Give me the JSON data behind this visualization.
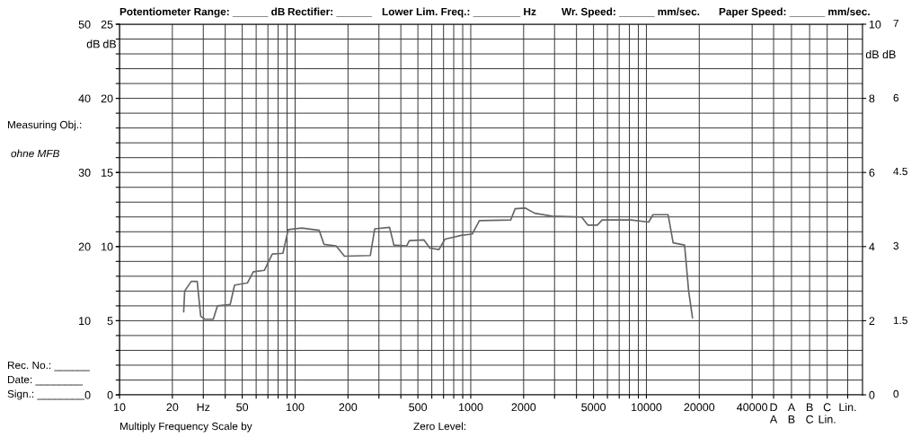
{
  "chart_data": {
    "type": "line",
    "log": "x",
    "grid": true,
    "marker": "none",
    "line_style": "solid",
    "ylabel": "dB",
    "y2label": "dB",
    "y3label": "dB dB",
    "xlim": [
      10,
      170000
    ],
    "ylim": [
      0,
      50
    ],
    "y2lim": [
      0,
      25
    ],
    "y3lim": [
      0,
      10
    ],
    "xticks": [
      10,
      20,
      {
        "value": 30,
        "label": "Hz"
      },
      {
        "value": 40,
        "label": null
      },
      50,
      {
        "value": 60,
        "label": null
      },
      {
        "value": 70,
        "label": null
      },
      {
        "value": 80,
        "label": null
      },
      {
        "value": 90,
        "label": null
      },
      100,
      200,
      {
        "value": 300,
        "label": null
      },
      {
        "value": 400,
        "label": null
      },
      500,
      {
        "value": 600,
        "label": null
      },
      {
        "value": 700,
        "label": null
      },
      {
        "value": 800,
        "label": null
      },
      {
        "value": 900,
        "label": null
      },
      1000,
      2000,
      {
        "value": 3000,
        "label": null
      },
      {
        "value": 4000,
        "label": null
      },
      5000,
      {
        "value": 6000,
        "label": null
      },
      {
        "value": 7000,
        "label": null
      },
      {
        "value": 8000,
        "label": null
      },
      {
        "value": 9000,
        "label": null
      },
      10000,
      20000,
      40000,
      {
        "value": 53000,
        "label": "D\nA"
      },
      {
        "value": 67000,
        "label": "A\nB"
      },
      {
        "value": 85000,
        "label": "B\nC"
      },
      {
        "value": 107000,
        "label": "C\nLin."
      },
      {
        "value": 140000,
        "label": "Lin."
      }
    ],
    "yticks": [
      0,
      {
        "value": 2,
        "label": null
      },
      {
        "value": 4,
        "label": null
      },
      {
        "value": 6,
        "label": null
      },
      {
        "value": 8,
        "label": null
      },
      10,
      {
        "value": 12,
        "label": null
      },
      {
        "value": 14,
        "label": null
      },
      {
        "value": 16,
        "label": null
      },
      {
        "value": 18,
        "label": null
      },
      20,
      {
        "value": 22,
        "label": null
      },
      {
        "value": 24,
        "label": null
      },
      {
        "value": 26,
        "label": null
      },
      {
        "value": 28,
        "label": null
      },
      30,
      {
        "value": 32,
        "label": null
      },
      {
        "value": 34,
        "label": null
      },
      {
        "value": 36,
        "label": null
      },
      {
        "value": 38,
        "label": null
      },
      40,
      {
        "value": 42,
        "label": null
      },
      {
        "value": 44,
        "label": null
      },
      {
        "value": 46,
        "label": null
      },
      {
        "value": 48,
        "label": null
      },
      50
    ],
    "y2ticks": [
      0,
      5,
      10,
      15,
      20,
      25
    ],
    "y3ticks": [
      0,
      2,
      4,
      6,
      8,
      10
    ],
    "series": [
      {
        "color": "#666666",
        "x": [
          23.2,
          23.5,
          25.6,
          27.7,
          29,
          30.6,
          34.2,
          36.1,
          42.7,
          45.2,
          53.5,
          57.8,
          66.9,
          74.1,
          85.2,
          91.4,
          109,
          137,
          146,
          171,
          191,
          268,
          284,
          345,
          365,
          432,
          447,
          541,
          585,
          659,
          713,
          878,
          1020,
          1120,
          1690,
          1790,
          2040,
          2310,
          2900,
          4270,
          4640,
          5260,
          5600,
          8180,
          10300,
          10900,
          13300,
          14200,
          16500,
          17400,
          18300
        ],
        "values": [
          11.2,
          14.0,
          15.3,
          15.3,
          10.6,
          10.2,
          10.2,
          12.0,
          12.2,
          14.8,
          15.1,
          16.6,
          16.8,
          19.0,
          19.1,
          22.3,
          22.5,
          22.2,
          20.3,
          20.1,
          18.7,
          18.8,
          22.4,
          22.6,
          20.2,
          20.1,
          20.8,
          20.9,
          19.8,
          19.6,
          21.0,
          21.5,
          21.7,
          23.5,
          23.6,
          25.1,
          25.2,
          24.5,
          24.1,
          24.0,
          22.9,
          22.9,
          23.6,
          23.6,
          23.3,
          24.3,
          24.3,
          20.5,
          20.2,
          14.0,
          10.4
        ]
      }
    ],
    "annotations": [
      "Potentiometer Range: ______ dB",
      "Rectifier: ______",
      "Lower Lim. Freq.: ________ Hz",
      "Wr. Speed: ______ mm/sec.",
      "Paper Speed: ______ mm/sec.",
      "Measuring Obj.:",
      "ohne MFB",
      "Rec. No.: ______",
      "Date: ________",
      "Sign.: ________",
      "Multiply Frequency Scale by",
      "Zero Level:",
      "7",
      "6",
      "4.5",
      "3",
      "1.5",
      "0"
    ]
  }
}
